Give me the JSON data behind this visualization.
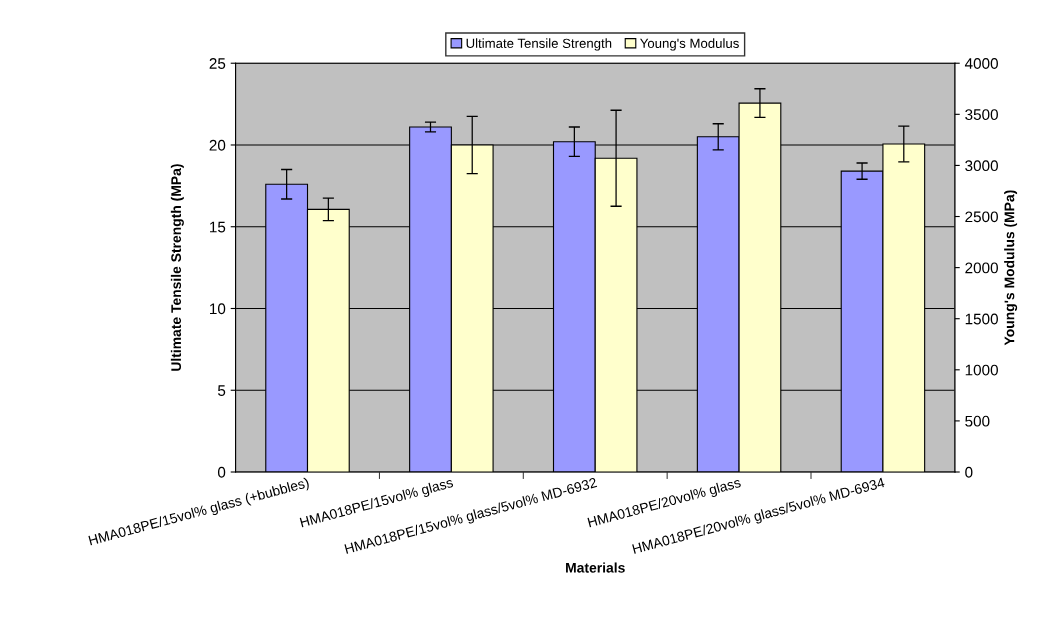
{
  "chart_data": {
    "type": "bar",
    "categories": [
      "HMA018PE/15vol% glass (+bubbles)",
      "HMA018PE/15vol% glass",
      "HMA018PE/15vol% glass/5vol% MD-6932",
      "HMA018PE/20vol% glass",
      "HMA018PE/20vol% glass/5vol% MD-6934"
    ],
    "series": [
      {
        "name": "Ultimate Tensile Strength",
        "color": "#9999ff",
        "values": [
          17.6,
          21.1,
          20.2,
          20.5,
          18.4
        ],
        "errors": [
          0.9,
          0.3,
          0.9,
          0.8,
          0.5
        ]
      },
      {
        "name": "Young's Modulus",
        "color": "#ffffcc",
        "axis": "y2",
        "values": [
          2570,
          3200,
          3070,
          3610,
          3210
        ],
        "errors": [
          110,
          280,
          470,
          140,
          175
        ]
      }
    ],
    "xlabel": "Materials",
    "ylabel": "Ultimate Tensile Strength (MPa)",
    "y2label": "Young's Modulus (MPa)",
    "ylim": [
      0,
      25
    ],
    "yticks": [
      0,
      5,
      10,
      15,
      20,
      25
    ],
    "y2lim": [
      0,
      4000
    ],
    "y2ticks": [
      0,
      500,
      1000,
      1500,
      2000,
      2500,
      3000,
      3500,
      4000
    ],
    "grid": "y",
    "legend": "top"
  }
}
